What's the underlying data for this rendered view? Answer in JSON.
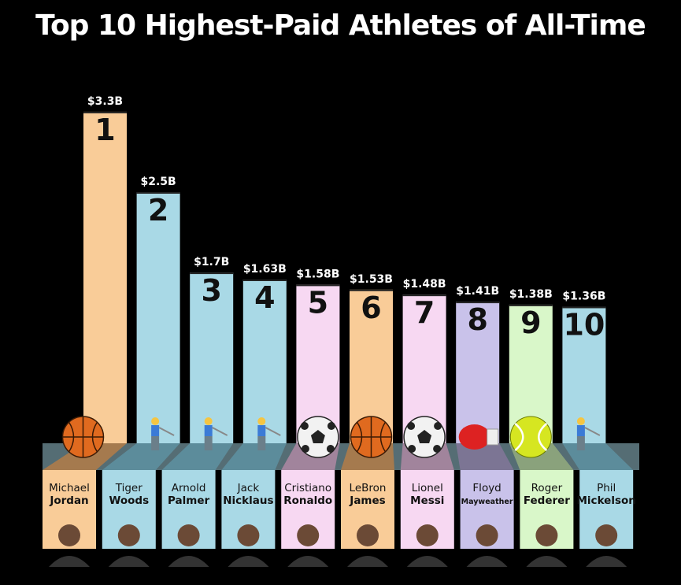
{
  "colors": {
    "background": "#000000",
    "orange": "#f9cc98",
    "blue": "#a9d9e6",
    "pink": "#f7d8f2",
    "purple": "#c9c2ea",
    "green": "#d9f7c9",
    "shadow_orange": "#a57a4e",
    "shadow_blue": "#5c8c9b",
    "shadow_pink": "#a1849c",
    "shadow_purple": "#7c7594",
    "shadow_green": "#8aa27c"
  },
  "chart_data": {
    "type": "bar",
    "title": "Top 10 Highest-Paid Athletes of All-Time",
    "categories": [
      "Michael Jordan",
      "Tiger Woods",
      "Arnold Palmer",
      "Jack Nicklaus",
      "Cristiano Ronaldo",
      "LeBron James",
      "Lionel Messi",
      "Floyd Mayweather",
      "Roger Federer",
      "Phil Mickelson"
    ],
    "values": [
      3.3,
      2.5,
      1.7,
      1.63,
      1.58,
      1.53,
      1.48,
      1.41,
      1.38,
      1.36
    ],
    "unit": "$B",
    "value_labels": [
      "$3.3B",
      "$2.5B",
      "$1.7B",
      "$1.63B",
      "$1.58B",
      "$1.53B",
      "$1.48B",
      "$1.41B",
      "$1.38B",
      "$1.36B"
    ],
    "ranks": [
      "1",
      "2",
      "3",
      "4",
      "5",
      "6",
      "7",
      "8",
      "9",
      "10"
    ],
    "athletes": [
      {
        "first": "Michael",
        "last": "Jordan",
        "sport": "basketball",
        "color": "orange"
      },
      {
        "first": "Tiger",
        "last": "Woods",
        "sport": "golf",
        "color": "blue"
      },
      {
        "first": "Arnold",
        "last": "Palmer",
        "sport": "golf",
        "color": "blue"
      },
      {
        "first": "Jack",
        "last": "Nicklaus",
        "sport": "golf",
        "color": "blue"
      },
      {
        "first": "Cristiano",
        "last": "Ronaldo",
        "sport": "soccer",
        "color": "pink"
      },
      {
        "first": "LeBron",
        "last": "James",
        "sport": "basketball",
        "color": "orange"
      },
      {
        "first": "Lionel",
        "last": "Messi",
        "sport": "soccer",
        "color": "pink"
      },
      {
        "first": "Floyd",
        "last": "Mayweather",
        "sport": "boxing",
        "color": "purple"
      },
      {
        "first": "Roger",
        "last": "Federer",
        "sport": "tennis",
        "color": "green"
      },
      {
        "first": "Phil",
        "last": "Mickelson",
        "sport": "golf",
        "color": "blue"
      }
    ],
    "sport_icons": {
      "basketball": "basketball-icon",
      "golf": "golfer-icon",
      "soccer": "soccer-ball-icon",
      "boxing": "boxing-glove-icon",
      "tennis": "tennis-ball-icon"
    },
    "photos": "athlete-portrait-icon",
    "grid": false,
    "legend": "none"
  }
}
